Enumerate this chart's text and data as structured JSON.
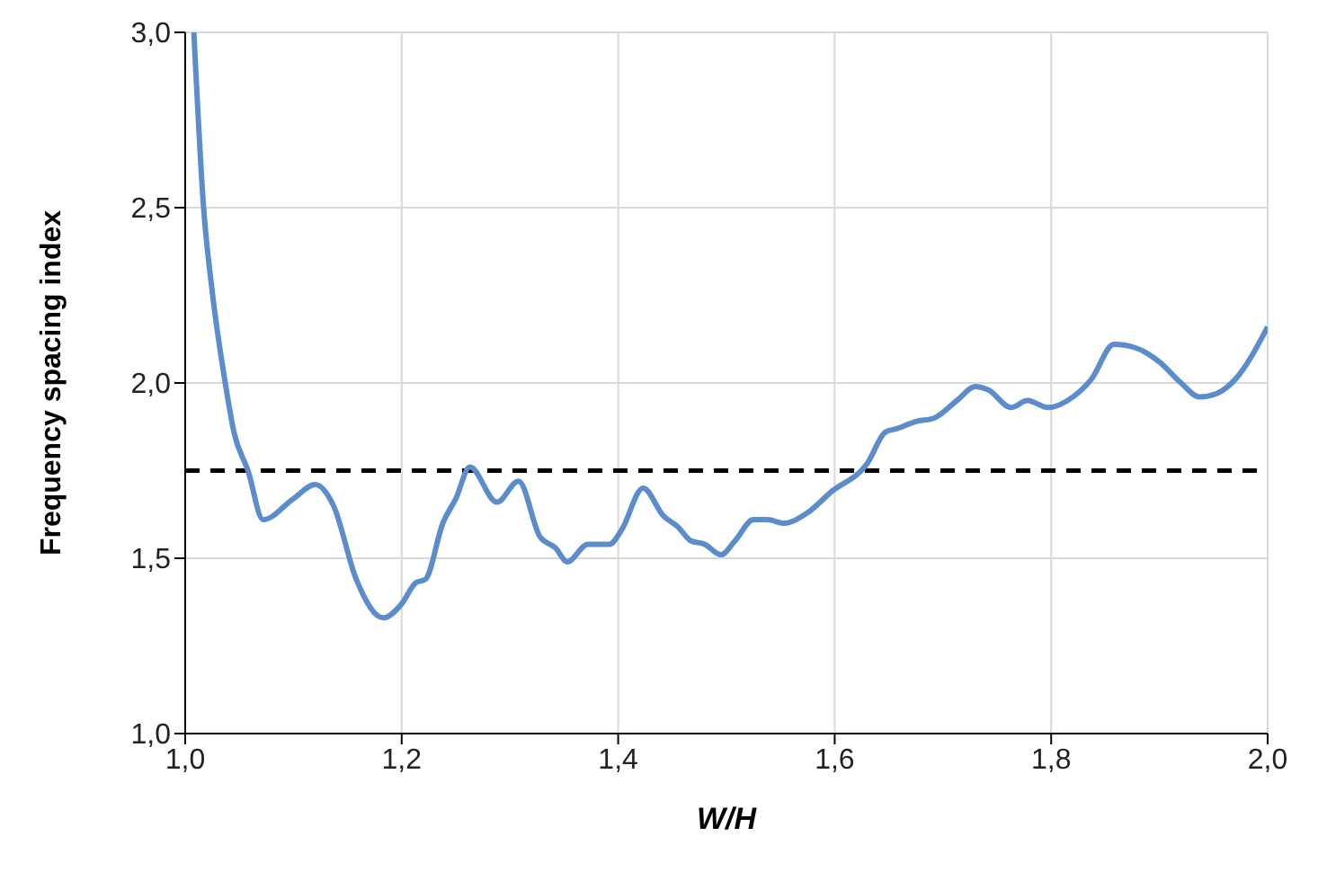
{
  "chart_data": {
    "type": "line",
    "xlabel": "W/H",
    "ylabel": "Frequency spacing index",
    "x": [
      1.008,
      1.017,
      1.025,
      1.037,
      1.045,
      1.058,
      1.072,
      1.1,
      1.12,
      1.137,
      1.158,
      1.183,
      1.2,
      1.213,
      1.222,
      1.238,
      1.25,
      1.263,
      1.288,
      1.308,
      1.328,
      1.342,
      1.353,
      1.372,
      1.392,
      1.403,
      1.423,
      1.442,
      1.455,
      1.467,
      1.48,
      1.495,
      1.508,
      1.525,
      1.538,
      1.553,
      1.575,
      1.597,
      1.63,
      1.647,
      1.658,
      1.675,
      1.692,
      1.713,
      1.73,
      1.742,
      1.763,
      1.778,
      1.797,
      1.82,
      1.837,
      1.858,
      1.878,
      1.9,
      1.92,
      1.937,
      1.953,
      1.97,
      2.0
    ],
    "series": [
      {
        "color": "#5b8ccb",
        "values": [
          3.0,
          2.5,
          2.26,
          2.0,
          1.86,
          1.75,
          1.61,
          1.67,
          1.71,
          1.65,
          1.44,
          1.33,
          1.37,
          1.43,
          1.44,
          1.6,
          1.67,
          1.76,
          1.66,
          1.72,
          1.56,
          1.53,
          1.49,
          1.54,
          1.54,
          1.58,
          1.7,
          1.62,
          1.59,
          1.55,
          1.54,
          1.51,
          1.55,
          1.61,
          1.61,
          1.6,
          1.63,
          1.69,
          1.77,
          1.86,
          1.87,
          1.89,
          1.9,
          1.95,
          1.99,
          1.98,
          1.93,
          1.95,
          1.93,
          1.96,
          2.01,
          2.11,
          2.1,
          2.06,
          2.0,
          1.96,
          1.97,
          2.01,
          2.16
        ]
      }
    ],
    "xlim": [
      1.0,
      2.0
    ],
    "xticks": [
      {
        "value": 1.0,
        "label": "1,0"
      },
      {
        "value": 1.2,
        "label": "1,2"
      },
      {
        "value": 1.4,
        "label": "1,4"
      },
      {
        "value": 1.6,
        "label": "1,6"
      },
      {
        "value": 1.8,
        "label": "1,8"
      },
      {
        "value": 2.0,
        "label": "2,0"
      }
    ],
    "ylim": [
      1.0,
      3.0
    ],
    "yticks": [
      {
        "value": 1.0,
        "label": "1,0"
      },
      {
        "value": 1.5,
        "label": "1,5"
      },
      {
        "value": 2.0,
        "label": "2,0"
      },
      {
        "value": 2.5,
        "label": "2,5"
      },
      {
        "value": 3.0,
        "label": "3,0"
      }
    ],
    "grid": true,
    "line_style": "solid",
    "marker": "none",
    "ref_lines": [
      {
        "axis": "y",
        "value": 1.75,
        "color": "#000000",
        "line_style": "dashed"
      }
    ]
  }
}
